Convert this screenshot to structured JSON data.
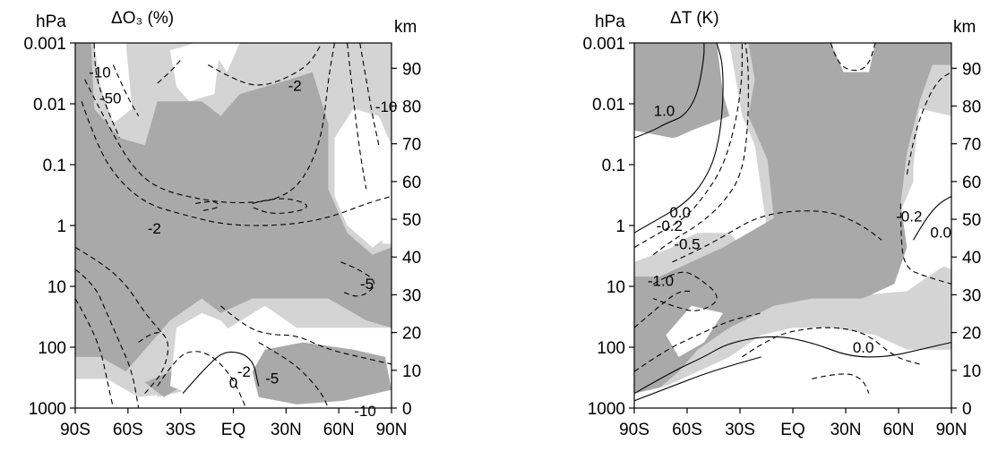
{
  "chart_data": [
    {
      "type": "heatmap",
      "title": "ΔO₃ (%)",
      "left_unit": "hPa",
      "right_unit": "km",
      "x_tick_labels": [
        "90S",
        "60S",
        "30S",
        "EQ",
        "30N",
        "60N",
        "90N"
      ],
      "x_ticks": [
        -90,
        -60,
        -30,
        0,
        30,
        60,
        90
      ],
      "left_tick_labels": [
        "0.001",
        "0.01",
        "0.1",
        "1",
        "10",
        "100",
        "1000"
      ],
      "left_ticks_hpa": [
        0.001,
        0.01,
        0.1,
        1,
        10,
        100,
        1000
      ],
      "left_log_scale": true,
      "right_tick_labels": [
        "0",
        "10",
        "20",
        "30",
        "40",
        "50",
        "60",
        "70",
        "80",
        "90"
      ],
      "right_ticks_km": [
        0,
        10,
        20,
        30,
        40,
        50,
        60,
        70,
        80,
        90
      ],
      "xlim": [
        -90,
        90
      ],
      "ylim_hpa": [
        1000,
        0.001
      ],
      "contour_labels": [
        {
          "text": "-10",
          "lat": -76,
          "p_hpa": 0.003
        },
        {
          "text": "-50",
          "lat": -70,
          "p_hpa": 0.008
        },
        {
          "text": "-2",
          "lat": 35,
          "p_hpa": 0.005
        },
        {
          "text": "-10",
          "lat": 87,
          "p_hpa": 0.011
        },
        {
          "text": "-2",
          "lat": -45,
          "p_hpa": 1.1
        },
        {
          "text": "-5",
          "lat": 76,
          "p_hpa": 9
        },
        {
          "text": "-2",
          "lat": 6,
          "p_hpa": 250
        },
        {
          "text": "0",
          "lat": 0,
          "p_hpa": 380
        },
        {
          "text": "-5",
          "lat": 22,
          "p_hpa": 320
        },
        {
          "text": "-10",
          "lat": 75,
          "p_hpa": 1100
        }
      ],
      "colors": {
        "shade_dark": "#a9a9a9",
        "shade_light": "#d4d4d4",
        "contour": "#000000"
      }
    },
    {
      "type": "heatmap",
      "title": "ΔT (K)",
      "left_unit": "hPa",
      "right_unit": "km",
      "x_tick_labels": [
        "90S",
        "60S",
        "30S",
        "EQ",
        "30N",
        "60N",
        "90N"
      ],
      "x_ticks": [
        -90,
        -60,
        -30,
        0,
        30,
        60,
        90
      ],
      "left_tick_labels": [
        "0.001",
        "0.01",
        "0.1",
        "1",
        "10",
        "100",
        "1000"
      ],
      "left_ticks_hpa": [
        0.001,
        0.01,
        0.1,
        1,
        10,
        100,
        1000
      ],
      "left_log_scale": true,
      "right_tick_labels": [
        "0",
        "10",
        "20",
        "30",
        "40",
        "50",
        "60",
        "70",
        "80",
        "90"
      ],
      "right_ticks_km": [
        0,
        10,
        20,
        30,
        40,
        50,
        60,
        70,
        80,
        90
      ],
      "xlim": [
        -90,
        90
      ],
      "ylim_hpa": [
        1000,
        0.001
      ],
      "contour_labels": [
        {
          "text": "1.0",
          "lat": -73,
          "p_hpa": 0.013
        },
        {
          "text": "0.0",
          "lat": -64,
          "p_hpa": 0.6
        },
        {
          "text": "-0.2",
          "lat": -70,
          "p_hpa": 1.0
        },
        {
          "text": "-0.5",
          "lat": -60,
          "p_hpa": 2.0
        },
        {
          "text": "-1.0",
          "lat": -75,
          "p_hpa": 8
        },
        {
          "text": "-0.2",
          "lat": 66,
          "p_hpa": 0.7
        },
        {
          "text": "0.0",
          "lat": 84,
          "p_hpa": 1.3
        },
        {
          "text": "0.0",
          "lat": 40,
          "p_hpa": 100
        }
      ],
      "colors": {
        "shade_dark": "#a9a9a9",
        "shade_light": "#d4d4d4",
        "contour": "#000000"
      }
    }
  ]
}
